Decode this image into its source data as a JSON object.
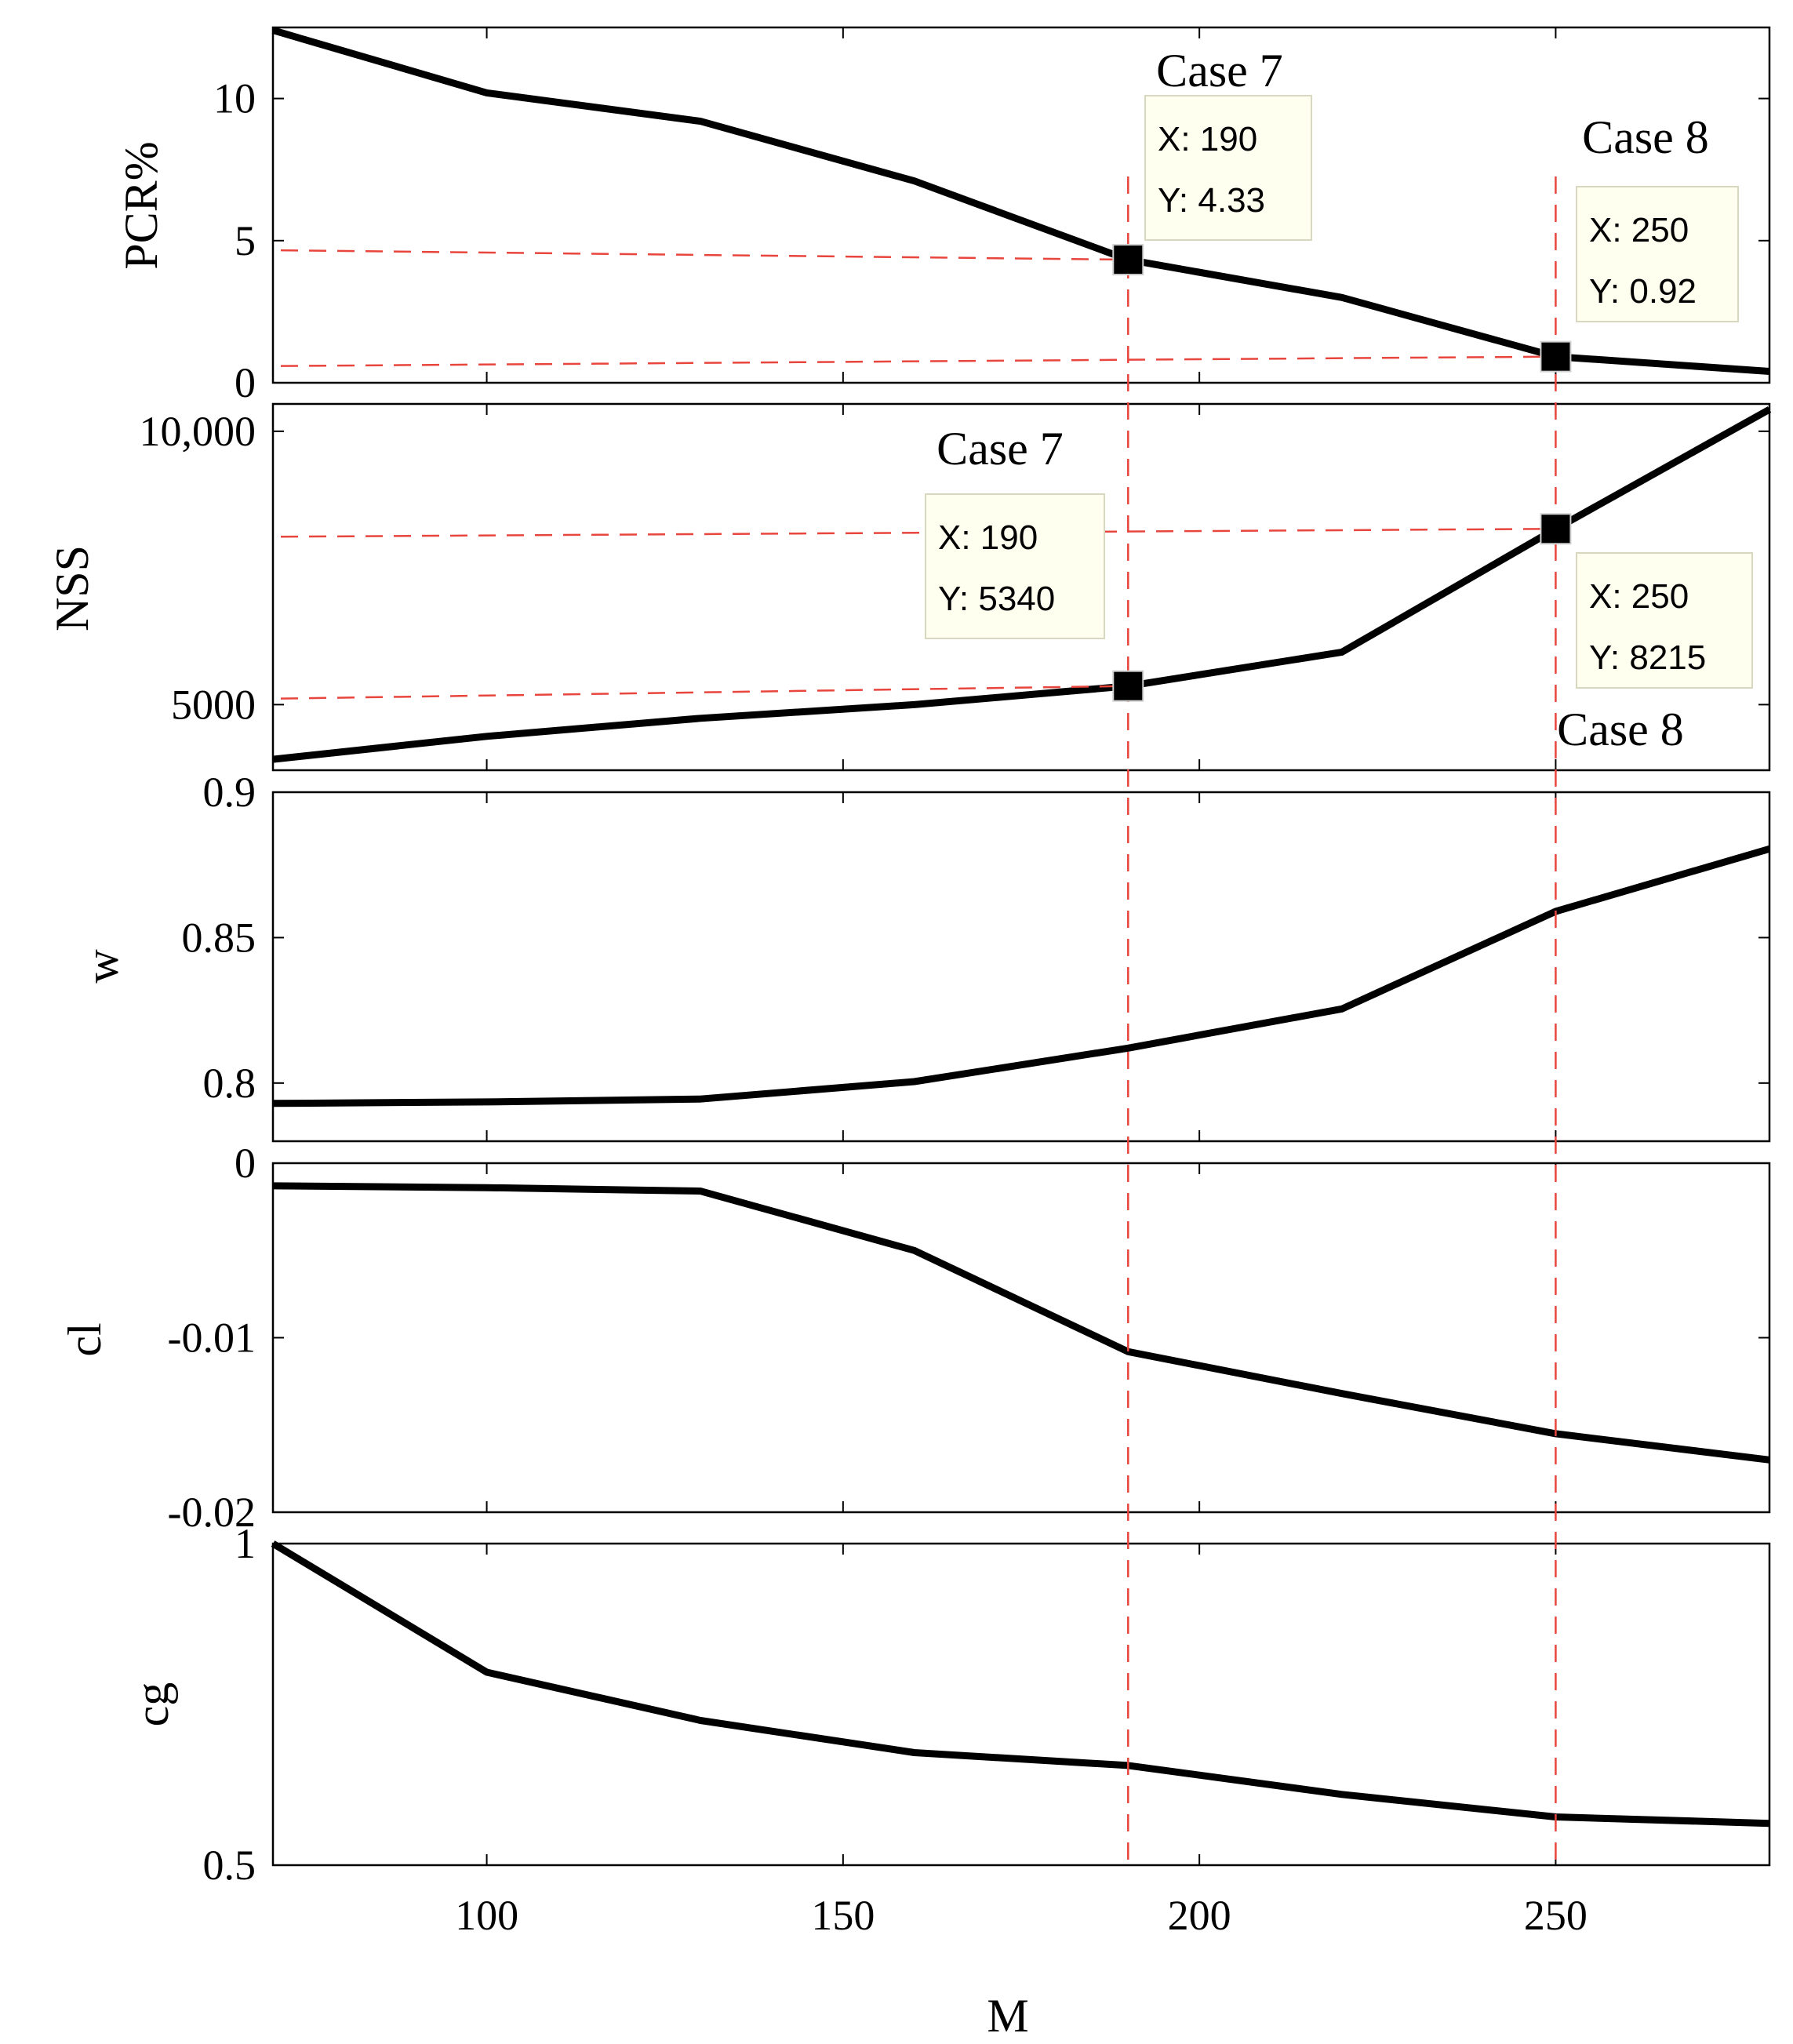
{
  "chart_data": {
    "type": "line",
    "shared_x": {
      "label": "M",
      "range": [
        70,
        280
      ],
      "ticks": [
        100,
        150,
        200,
        250
      ],
      "tick_labels": [
        "100",
        "150",
        "200",
        "250"
      ]
    },
    "x": [
      70,
      100,
      130,
      160,
      190,
      220,
      250,
      280
    ],
    "panels": [
      {
        "id": "pcr",
        "ylabel": "PCR%",
        "ylim": [
          0,
          12.5
        ],
        "yticks": [
          0,
          5,
          10
        ],
        "ytick_labels": [
          "0",
          "5",
          "10"
        ],
        "values": [
          12.4,
          10.2,
          9.2,
          7.1,
          4.33,
          3.0,
          0.92,
          0.4
        ],
        "points": [
          {
            "case": "Case 7",
            "x": 190,
            "y": 4.33,
            "x_text": "X: 190",
            "y_text": "Y: 4.33"
          },
          {
            "case": "Case 8",
            "x": 250,
            "y": 0.92,
            "x_text": "X: 250",
            "y_text": "Y: 0.92"
          }
        ]
      },
      {
        "id": "nss",
        "ylabel": "NSS",
        "ylim": [
          3800,
          10500
        ],
        "yticks": [
          5000,
          10000
        ],
        "ytick_labels": [
          "5000",
          "10,000"
        ],
        "values": [
          4000,
          4420,
          4750,
          5000,
          5340,
          5960,
          8215,
          10400
        ],
        "points": [
          {
            "case": "Case 7",
            "x": 190,
            "y": 5340,
            "x_text": "X: 190",
            "y_text": "Y: 5340"
          },
          {
            "case": "Case 8",
            "x": 250,
            "y": 8215,
            "x_text": "X: 250",
            "y_text": "Y: 8215"
          }
        ]
      },
      {
        "id": "w",
        "ylabel": "w",
        "ylim": [
          0.78,
          0.9
        ],
        "yticks": [
          0.8,
          0.85,
          0.9
        ],
        "ytick_labels": [
          "0.8",
          "0.85",
          "0.9"
        ],
        "values": [
          0.793,
          0.7935,
          0.7945,
          0.8005,
          0.812,
          0.8255,
          0.859,
          0.8805
        ]
      },
      {
        "id": "cl",
        "ylabel": "cl",
        "ylim": [
          -0.02,
          0
        ],
        "yticks": [
          -0.02,
          -0.01,
          0
        ],
        "ytick_labels": [
          "-0.02",
          "-0.01",
          "0"
        ],
        "values": [
          -0.0013,
          -0.0014,
          -0.0016,
          -0.005,
          -0.0108,
          -0.0132,
          -0.0155,
          -0.017
        ]
      },
      {
        "id": "cg",
        "ylabel": "cg",
        "ylim": [
          0.5,
          1.0
        ],
        "yticks": [
          0.5,
          1
        ],
        "ytick_labels": [
          "0.5",
          "1"
        ],
        "values": [
          1.0,
          0.8,
          0.725,
          0.675,
          0.655,
          0.61,
          0.575,
          0.565
        ]
      }
    ]
  }
}
